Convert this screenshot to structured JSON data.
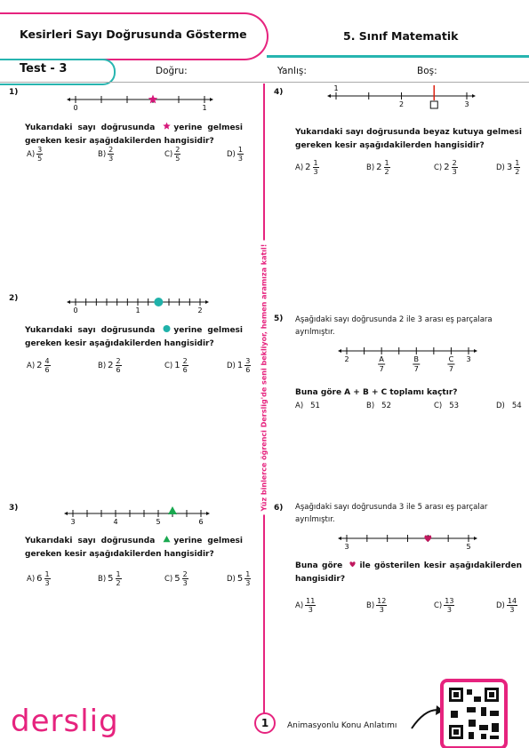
{
  "header": {
    "title": "Kesirleri Sayı Doğrusunda Gösterme",
    "subject": "5. Sınıf Matematik",
    "test": "Test - 3",
    "fields": [
      "Doğru:",
      "Yanlış:",
      "Boş:"
    ]
  },
  "side_text": "Yüz binlerce öğrenci Derslig'de seni bekliyor, hemen aramıza katıl!",
  "questions": [
    {
      "number": "1)",
      "line_labels": [
        "0",
        "1"
      ],
      "stem": [
        "Yukarıdaki sayı doğrusunda",
        "yerine gelmesi gereken kesir aşağıdakilerden hangisidir?"
      ],
      "options": [
        {
          "letter": "A)",
          "num": "3",
          "den": "5"
        },
        {
          "letter": "B)",
          "num": "2",
          "den": "3"
        },
        {
          "letter": "C)",
          "num": "2",
          "den": "5"
        },
        {
          "letter": "D)",
          "num": "1",
          "den": "3"
        }
      ]
    },
    {
      "number": "2)",
      "line_labels": [
        "0",
        "1",
        "2"
      ],
      "stem": [
        "Yukarıdaki sayı doğrusunda",
        "yerine gelmesi gereken kesir aşağıdakilerden hangisidir?"
      ],
      "options": [
        {
          "letter": "A)",
          "whole": "2",
          "num": "4",
          "den": "6"
        },
        {
          "letter": "B)",
          "whole": "2",
          "num": "2",
          "den": "6"
        },
        {
          "letter": "C)",
          "whole": "1",
          "num": "2",
          "den": "6"
        },
        {
          "letter": "D)",
          "whole": "1",
          "num": "3",
          "den": "6"
        }
      ]
    },
    {
      "number": "3)",
      "line_labels": [
        "3",
        "4",
        "5",
        "6"
      ],
      "stem": [
        "Yukarıdaki sayı doğrusunda",
        "yerine gelmesi gereken kesir aşağıdakilerden hangisidir?"
      ],
      "options": [
        {
          "letter": "A)",
          "whole": "6",
          "num": "1",
          "den": "3"
        },
        {
          "letter": "B)",
          "whole": "5",
          "num": "1",
          "den": "2"
        },
        {
          "letter": "C)",
          "whole": "5",
          "num": "2",
          "den": "3"
        },
        {
          "letter": "D)",
          "whole": "5",
          "num": "1",
          "den": "3"
        }
      ]
    },
    {
      "number": "4)",
      "line_labels": [
        "1",
        "2",
        "3"
      ],
      "stem": [
        "Yukarıdaki sayı doğrusunda beyaz kutuya gelmesi gereken kesir aşağıdakilerden hangisidir?"
      ],
      "options": [
        {
          "letter": "A)",
          "whole": "2",
          "num": "1",
          "den": "3"
        },
        {
          "letter": "B)",
          "whole": "2",
          "num": "1",
          "den": "2"
        },
        {
          "letter": "C)",
          "whole": "2",
          "num": "2",
          "den": "3"
        },
        {
          "letter": "D)",
          "whole": "3",
          "num": "1",
          "den": "2"
        }
      ]
    },
    {
      "number": "5)",
      "intro": "Aşağıdaki sayı doğrusunda 2 ile 3 arası eş parçalara ayrılmıştır.",
      "line_labels": [
        "2",
        "A",
        "B",
        "C",
        "3"
      ],
      "line_denominators": [
        "7",
        "7",
        "7"
      ],
      "stem": [
        "Buna göre A + B + C toplamı kaçtır?"
      ],
      "options": [
        {
          "letter": "A)",
          "num": "51"
        },
        {
          "letter": "B)",
          "num": "52"
        },
        {
          "letter": "C)",
          "num": "53"
        },
        {
          "letter": "D)",
          "num": "54"
        }
      ]
    },
    {
      "number": "6)",
      "intro": "Aşağıdaki sayı doğrusunda 3 ile 5 arası eş parçalar ayrılmıştır.",
      "line_labels": [
        "3",
        "5"
      ],
      "stem": [
        "Buna göre",
        "ile gösterilen kesir aşağıdakilerden hangisidir?"
      ],
      "options": [
        {
          "letter": "A)",
          "num": "11",
          "den": "3"
        },
        {
          "letter": "B)",
          "num": "12",
          "den": "3"
        },
        {
          "letter": "C)",
          "num": "13",
          "den": "3"
        },
        {
          "letter": "D)",
          "num": "14",
          "den": "3"
        }
      ]
    }
  ],
  "footer": {
    "logo": "derslig",
    "page": "1",
    "caption": "Animasyonlu Konu Anlatımı"
  }
}
